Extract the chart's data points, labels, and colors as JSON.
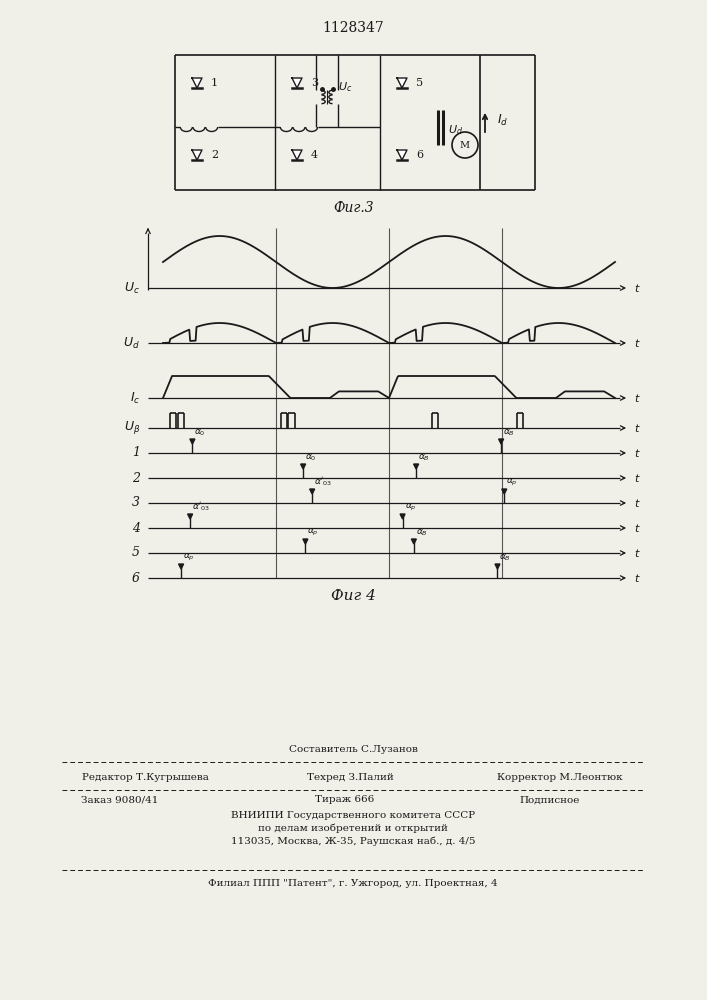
{
  "patent_number": "1128347",
  "bg_color": "#f0efe8",
  "line_color": "#1a1a1a",
  "fig3_label": "Фиг.3",
  "fig4_label": "Фиг 4",
  "footer_composer": "Составитель С.Лузанов",
  "footer_editor": "Редактор Т.Кугрышева",
  "footer_tech": "Техред З.Палий",
  "footer_corrector": "Корректор М.Леонтюк",
  "footer_order": "Заказ 9080/41",
  "footer_print": "Тираж 666",
  "footer_signed": "Подписное",
  "footer_org1": "ВНИИПИ Государственного комитета СССР",
  "footer_org2": "по делам изобретений и открытий",
  "footer_org3": "113035, Москва, Ж-35, Раушская наб., д. 4/5",
  "footer_branch": "Филиал ППП \"Патент\", г. Ужгород, ул. Проектная, 4"
}
